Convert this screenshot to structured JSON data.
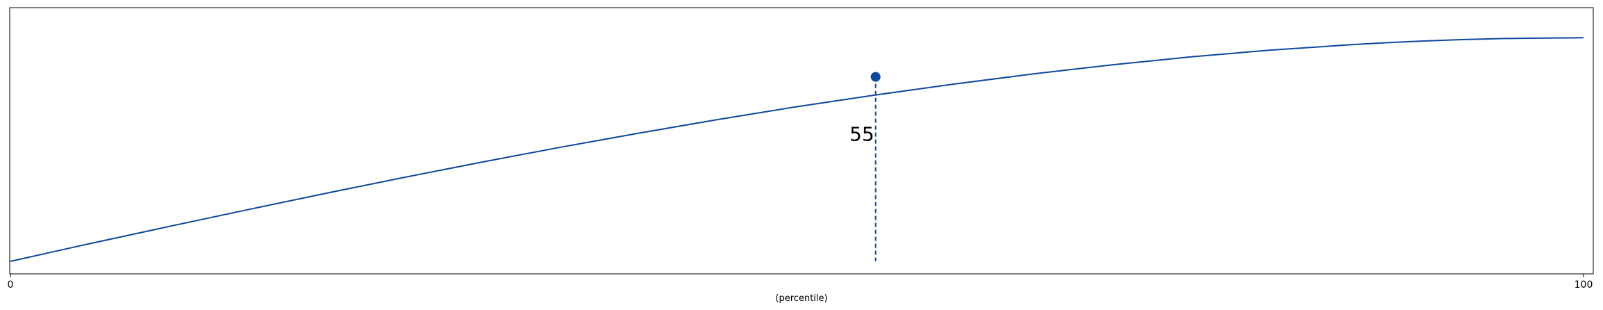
{
  "chart_data": {
    "type": "line",
    "title": "",
    "xlabel": "(percentile)",
    "ylabel": "",
    "xlim": [
      0,
      100
    ],
    "ylim": [
      0,
      1
    ],
    "xticks": [
      "0",
      "100"
    ],
    "grid": false,
    "series": [
      {
        "x": [
          0,
          5,
          10,
          15,
          20,
          25,
          30,
          35,
          40,
          45,
          50,
          55,
          60,
          65,
          70,
          75,
          80,
          85,
          90,
          95,
          100
        ],
        "values": [
          0.047,
          0.113,
          0.177,
          0.24,
          0.302,
          0.362,
          0.42,
          0.476,
          0.529,
          0.58,
          0.628,
          0.672,
          0.713,
          0.751,
          0.785,
          0.815,
          0.84,
          0.86,
          0.875,
          0.884,
          0.887
        ],
        "color": "#0d47a1"
      }
    ],
    "marker": {
      "x": 55,
      "y": 0.74,
      "label": "55",
      "color": "#0d47a1"
    }
  }
}
